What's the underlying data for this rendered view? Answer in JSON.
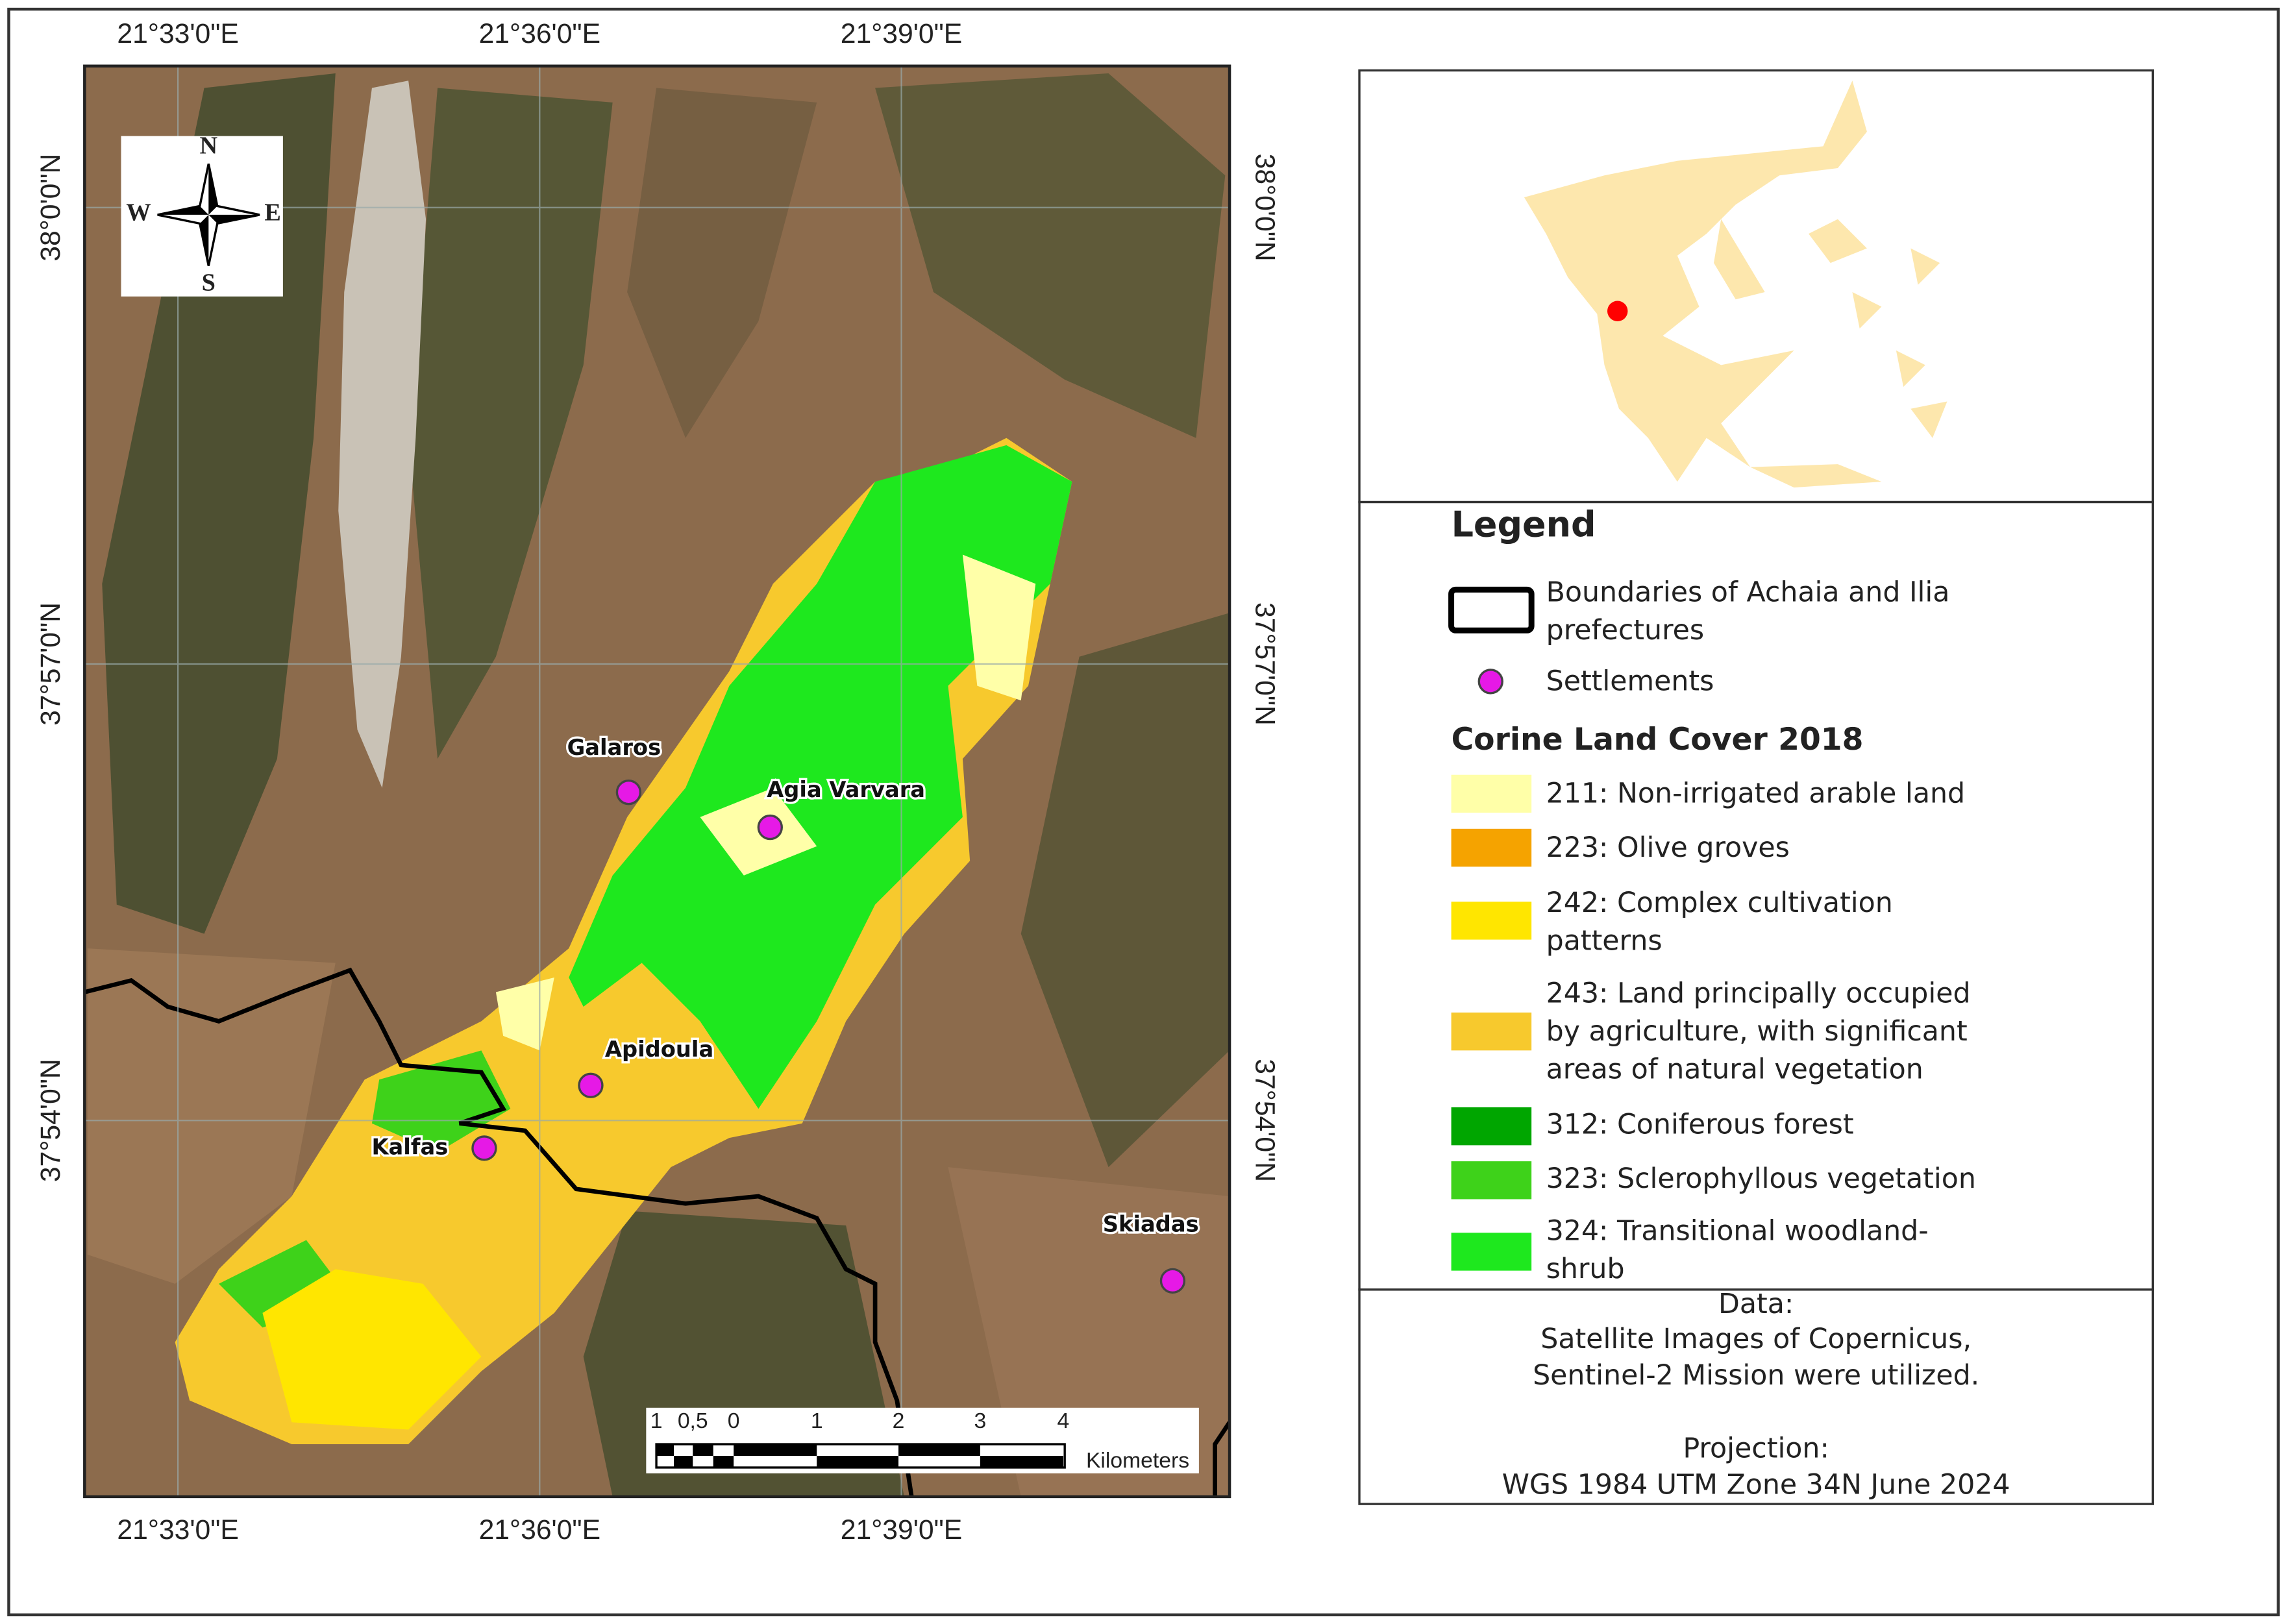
{
  "map": {
    "top_labels": [
      "21°33'0\"E",
      "21°36'0\"E",
      "21°39'0\"E"
    ],
    "bottom_labels": [
      "21°33'0\"E",
      "21°36'0\"E",
      "21°39'0\"E"
    ],
    "left_labels": [
      "38°0'0\"N",
      "37°57'0\"N",
      "37°54'0\"N"
    ],
    "right_labels": [
      "38°0'0\"N",
      "37°57'0\"N",
      "37°54'0\"N"
    ],
    "compass": [
      "N",
      "S",
      "W",
      "E"
    ],
    "settlements": [
      "Galaros",
      "Agia Varvara",
      "Apidoula",
      "Kalfas",
      "Skiadas"
    ],
    "scale_bar": {
      "ticks": [
        "1",
        "0,5",
        "0",
        "1",
        "2",
        "3",
        "4"
      ],
      "unit": "Kilometers"
    }
  },
  "legend": {
    "title": "Legend",
    "boundary": [
      "Boundaries of Achaia and Ilia",
      "prefectures"
    ],
    "settlements": "Settlements",
    "subtitle": "Corine Land Cover 2018",
    "items": [
      {
        "lines": [
          "211: Non-irrigated arable land"
        ],
        "color": "#ffffa8"
      },
      {
        "lines": [
          "223: Olive groves"
        ],
        "color": "#f5a300"
      },
      {
        "lines": [
          "242: Complex cultivation",
          "patterns"
        ],
        "color": "#ffe600"
      },
      {
        "lines": [
          "243: Land principally occupied",
          "by agriculture, with significant",
          "areas of natural vegetation"
        ],
        "color": "#f7c92d"
      },
      {
        "lines": [
          "312: Coniferous forest"
        ],
        "color": "#00a600"
      },
      {
        "lines": [
          "323: Sclerophyllous vegetation"
        ],
        "color": "#3ed21a"
      },
      {
        "lines": [
          "324: Transitional woodland-",
          "shrub"
        ],
        "color": "#1ee81e"
      }
    ]
  },
  "credits": {
    "data": "Data:",
    "source": [
      "Satellite Images of Copernicus,",
      "Sentinel-2 Mission were utilized."
    ],
    "projection": "Projection:",
    "projection_detail": "WGS 1984 UTM Zone 34N June 2024"
  }
}
